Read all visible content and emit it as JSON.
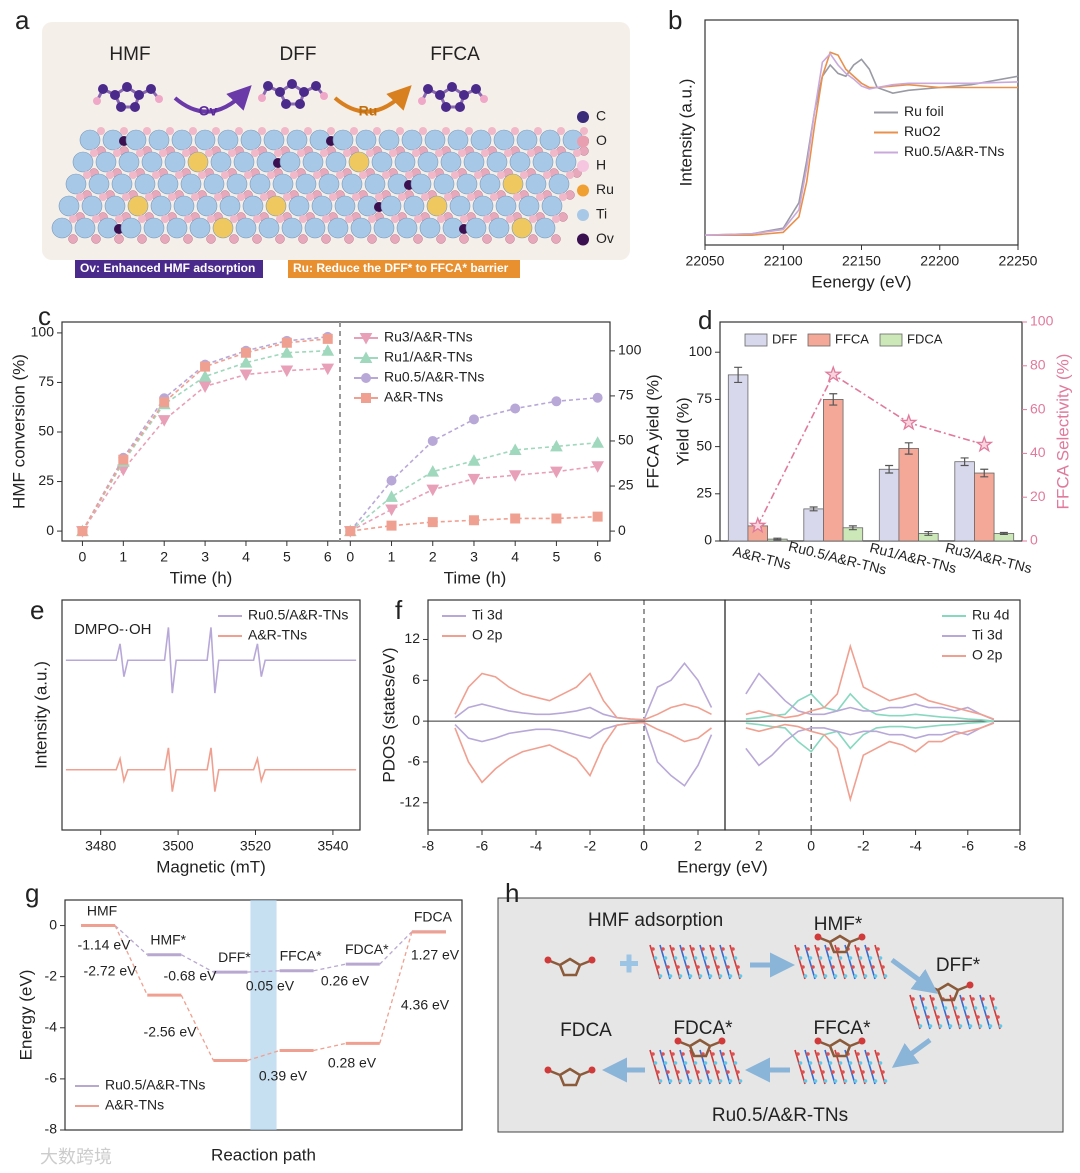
{
  "panel_labels": [
    "a",
    "b",
    "c",
    "d",
    "e",
    "f",
    "g",
    "h"
  ],
  "watermark": "大数跨境",
  "diagram_a": {
    "molecules": [
      "HMF",
      "DFF",
      "FFCA"
    ],
    "arrows": [
      "Ov",
      "Ru"
    ],
    "legend": [
      "C",
      "O",
      "H",
      "Ru",
      "Ti",
      "Ov"
    ],
    "captions": [
      "Ov: Enhanced HMF adsorption",
      "Ru: Reduce the DFF* to FFCA* barrier"
    ]
  },
  "diagram_h": {
    "steps": [
      "HMF adsorption",
      "HMF*",
      "DFF*",
      "FFCA*",
      "FDCA*",
      "FDCA"
    ],
    "catalyst": "Ru0.5/A&R-TNs"
  },
  "chart_data": [
    {
      "type": "line",
      "x_label": "Eenergy (eV)",
      "y_label": "Intensity (a.u.)",
      "x": [
        22050,
        22080,
        22100,
        22110,
        22115,
        22120,
        22125,
        22130,
        22135,
        22140,
        22145,
        22150,
        22155,
        22160,
        22170,
        22180,
        22200,
        22220,
        22250
      ],
      "xlim": [
        22050,
        22250
      ],
      "xticks": [
        22050,
        22100,
        22150,
        22200,
        22250
      ],
      "ylim": [
        0,
        1.6
      ],
      "legend": "center right",
      "series": [
        {
          "name": "Ru foil",
          "color": "#9a9aa4",
          "values": [
            0.07,
            0.08,
            0.12,
            0.3,
            0.6,
            0.95,
            1.2,
            1.28,
            1.22,
            1.2,
            1.28,
            1.32,
            1.25,
            1.12,
            1.08,
            1.1,
            1.12,
            1.14,
            1.2
          ]
        },
        {
          "name": "RuO2",
          "color": "#e8904c",
          "values": [
            0.07,
            0.07,
            0.09,
            0.2,
            0.45,
            0.85,
            1.2,
            1.37,
            1.35,
            1.25,
            1.2,
            1.15,
            1.12,
            1.12,
            1.13,
            1.14,
            1.12,
            1.12,
            1.12
          ]
        },
        {
          "name": "Ru0.5/A&R-TNs",
          "color": "#c9a9dc",
          "values": [
            0.07,
            0.08,
            0.11,
            0.25,
            0.55,
            0.95,
            1.3,
            1.36,
            1.28,
            1.22,
            1.18,
            1.13,
            1.11,
            1.12,
            1.14,
            1.15,
            1.15,
            1.15,
            1.16
          ]
        }
      ]
    },
    {
      "type": "line",
      "x_label": "Time (h)",
      "y_label": "HMF conversion (%)",
      "x": [
        0,
        1,
        2,
        3,
        4,
        5,
        6
      ],
      "xlim": [
        -0.5,
        6.3
      ],
      "xticks": [
        0,
        1,
        2,
        3,
        4,
        5,
        6
      ],
      "ylim": [
        -5,
        105.5
      ],
      "yticks": [
        0,
        25,
        50,
        75,
        100
      ],
      "series": [
        {
          "color": "#e8a0b8",
          "marker": "triangle-down",
          "linestyle": "dashed",
          "values": [
            0,
            31,
            56,
            73,
            79,
            81,
            82
          ]
        },
        {
          "color": "#9fd8bc",
          "marker": "triangle",
          "linestyle": "dashed",
          "values": [
            0,
            35,
            64,
            78,
            85,
            90,
            91
          ]
        },
        {
          "color": "#b8a8d8",
          "marker": "circle",
          "linestyle": "dashed",
          "values": [
            0,
            37,
            67,
            84,
            91,
            96,
            98
          ]
        },
        {
          "color": "#f0a090",
          "marker": "square",
          "linestyle": "dashed",
          "values": [
            0,
            36,
            65,
            83,
            90,
            95,
            97
          ]
        }
      ]
    },
    {
      "type": "line",
      "x_label": "Time (h)",
      "y_label": "FFCA yield (%)",
      "x": [
        0,
        1,
        2,
        3,
        4,
        5,
        6
      ],
      "xlim": [
        -0.25,
        6.3
      ],
      "xticks": [
        0,
        1,
        2,
        3,
        4,
        5,
        6
      ],
      "ylim": [
        -5.5,
        116
      ],
      "yticks": [
        0,
        25,
        50,
        75,
        100
      ],
      "legend": "upper left",
      "series": [
        {
          "name": "Ru3/A&R-TNs",
          "color": "#e8a0b8",
          "marker": "triangle-down",
          "linestyle": "dashed",
          "values": [
            0,
            12,
            23,
            29,
            31,
            33,
            36
          ]
        },
        {
          "name": "Ru1/A&R-TNs",
          "color": "#9fd8bc",
          "marker": "triangle",
          "linestyle": "dashed",
          "values": [
            0,
            19,
            33,
            39,
            45,
            47,
            49
          ]
        },
        {
          "name": "Ru0.5/A&R-TNs",
          "color": "#b8a8d8",
          "marker": "circle",
          "linestyle": "dashed",
          "values": [
            0,
            28,
            50,
            62,
            68,
            72,
            74
          ]
        },
        {
          "name": "A&R-TNs",
          "color": "#f0a090",
          "marker": "square",
          "linestyle": "dashed",
          "values": [
            0,
            3,
            5,
            6,
            7,
            7,
            8
          ]
        }
      ]
    },
    {
      "type": "bar",
      "y_label": "Yield (%)",
      "y2_label": "FFCA Selectivity (%)",
      "categories": [
        "A&R-TNs",
        "Ru0.5/A&R-TNs",
        "Ru1/A&R-TNs",
        "Ru3/A&R-TNs"
      ],
      "ylim": [
        0,
        116
      ],
      "yticks": [
        0,
        25,
        50,
        75,
        100
      ],
      "y2lim": [
        0,
        100
      ],
      "y2ticks": [
        0,
        20,
        40,
        60,
        80,
        100
      ],
      "legend": "upper center",
      "series": [
        {
          "name": "DFF",
          "color": "#d8d8ec",
          "values": [
            88,
            17,
            38,
            42
          ],
          "errors": [
            4,
            1,
            2,
            2
          ]
        },
        {
          "name": "FFCA",
          "color": "#f4a898",
          "values": [
            8,
            75,
            49,
            36
          ],
          "errors": [
            1,
            3,
            3,
            2
          ]
        },
        {
          "name": "FDCA",
          "color": "#cce8b8",
          "values": [
            1,
            7,
            4,
            4
          ],
          "errors": [
            0.5,
            1,
            1,
            0.5
          ]
        },
        {
          "axis": "y2",
          "color": "#e07a9c",
          "marker": "star",
          "linestyle": "dashdot",
          "values": [
            7,
            76,
            54,
            44
          ]
        }
      ]
    },
    {
      "type": "line",
      "x_label": "Magnetic (mT)",
      "y_label": "Intensity (a.u.)",
      "annotation": "DMPO-·OH",
      "x": [
        3471,
        3484,
        3485,
        3485.5,
        3486,
        3487,
        3496.5,
        3497.5,
        3498,
        3498.5,
        3499.5,
        3507.5,
        3508.5,
        3509,
        3509.5,
        3510.5,
        3519.5,
        3520.5,
        3521,
        3521.5,
        3522.5,
        3546
      ],
      "xlim": [
        3470,
        3547
      ],
      "xticks": [
        3480,
        3500,
        3520,
        3540
      ],
      "ylim": [
        -0.55,
        1.55
      ],
      "legend": "upper right",
      "series": [
        {
          "name": "Ru0.5/A&R-TNs",
          "color": "#b8a8d8",
          "values": [
            1,
            1,
            1.15,
            1,
            0.85,
            1,
            1,
            1.3,
            1,
            0.7,
            1,
            1,
            1.3,
            1,
            0.7,
            1,
            1,
            1.15,
            1,
            0.85,
            1,
            1
          ]
        },
        {
          "name": "A&R-TNs",
          "color": "#f0a090",
          "values": [
            0,
            0,
            0.1,
            0,
            -0.1,
            0,
            0,
            0.2,
            0,
            -0.2,
            0,
            0,
            0.2,
            0,
            -0.2,
            0,
            0,
            0.1,
            0,
            -0.1,
            0,
            0
          ]
        }
      ]
    },
    {
      "type": "line",
      "y_label": "PDOS (states/eV)",
      "x": [
        -7,
        -6.5,
        -6,
        -5.5,
        -5,
        -4.5,
        -4,
        -3.5,
        -3,
        -2.5,
        -2,
        -1.5,
        -1,
        -0.5,
        0,
        0.5,
        1,
        1.5,
        2,
        2.5
      ],
      "xlim": [
        -8,
        3
      ],
      "xticks": [
        -8,
        -6,
        -4,
        -2,
        0,
        2
      ],
      "ylim": [
        -16,
        17.8
      ],
      "yticks": [
        -12,
        -6,
        0,
        6,
        12
      ],
      "legend": "upper left",
      "series": [
        {
          "name": "Ti 3d",
          "color": "#b8a8d8",
          "values": [
            0.5,
            2,
            2.5,
            2,
            1.5,
            1.2,
            1,
            1,
            1.2,
            1.5,
            2,
            1,
            0.5,
            0.3,
            0.2,
            5,
            6,
            8.5,
            6,
            2
          ]
        },
        {
          "name": "O 2p",
          "color": "#f0a090",
          "values": [
            1,
            5,
            7,
            6.5,
            5,
            4,
            3.5,
            3,
            4,
            5,
            7,
            3,
            0.5,
            0.3,
            0.2,
            1,
            2,
            2.5,
            2,
            1
          ]
        },
        {
          "color": "#b8a8d8",
          "values": [
            -0.5,
            -2.5,
            -3,
            -2.5,
            -1.8,
            -1.5,
            -1.2,
            -1.2,
            -1.5,
            -2,
            -2.5,
            -1.2,
            -0.6,
            -0.3,
            -0.2,
            -6,
            -8,
            -9.5,
            -6.5,
            -2
          ]
        },
        {
          "color": "#f0a090",
          "values": [
            -1,
            -6,
            -9,
            -7,
            -5.5,
            -4.5,
            -4,
            -3.5,
            -4.5,
            -5.5,
            -8,
            -3.5,
            -0.6,
            -0.3,
            -0.2,
            -1.2,
            -2,
            -3,
            -2.5,
            -1
          ]
        }
      ]
    },
    {
      "type": "line",
      "x_label": "Energy (eV)",
      "x": [
        2.5,
        2,
        1.5,
        1,
        0.5,
        0,
        -0.5,
        -1,
        -1.5,
        -2,
        -2.5,
        -3,
        -3.5,
        -4,
        -4.5,
        -5,
        -5.5,
        -6,
        -6.5,
        -7
      ],
      "xlim": [
        3.3,
        -8
      ],
      "xticks": [
        2,
        0,
        -2,
        -4,
        -6,
        -8
      ],
      "ylim": [
        -16,
        17.8
      ],
      "legend": "upper right",
      "series": [
        {
          "name": "Ru 4d",
          "color": "#88d8c0",
          "values": [
            0.3,
            0.5,
            0.8,
            1,
            3,
            4,
            2,
            1.5,
            4,
            2,
            1,
            0.8,
            0.8,
            1,
            0.8,
            0.6,
            0.5,
            0.3,
            0.2,
            0
          ]
        },
        {
          "name": "Ti 3d",
          "color": "#b8a8d8",
          "values": [
            4,
            7,
            5,
            3,
            1.5,
            1,
            1,
            1.5,
            2,
            1.5,
            1.5,
            2,
            2,
            2.5,
            2,
            2,
            1.5,
            2,
            1,
            0.2
          ]
        },
        {
          "name": "O 2p",
          "color": "#f0a090",
          "values": [
            1,
            1.5,
            1,
            0.5,
            0.8,
            1.5,
            2,
            4,
            11,
            5,
            4,
            3,
            3.5,
            4,
            3,
            2.5,
            2,
            1.5,
            1,
            0.3
          ]
        },
        {
          "color": "#88d8c0",
          "values": [
            -0.3,
            -0.5,
            -0.8,
            -1,
            -3,
            -4.5,
            -2,
            -1.5,
            -4,
            -2,
            -1,
            -0.8,
            -0.8,
            -1,
            -0.8,
            -0.6,
            -0.5,
            -0.3,
            -0.2,
            0
          ]
        },
        {
          "color": "#b8a8d8",
          "values": [
            -4,
            -6.5,
            -5,
            -3,
            -1.5,
            -1,
            -1,
            -1.5,
            -2,
            -1.5,
            -1.5,
            -2,
            -2,
            -2.5,
            -2,
            -2,
            -1.5,
            -2,
            -1,
            -0.2
          ]
        },
        {
          "color": "#f0a090",
          "values": [
            -1,
            -1.5,
            -1,
            -0.5,
            -0.8,
            -1.5,
            -2,
            -4,
            -11.5,
            -5,
            -4,
            -3,
            -3.5,
            -4.5,
            -3,
            -3,
            -2,
            -1.5,
            -1,
            -0.3
          ]
        }
      ]
    },
    {
      "type": "step",
      "x_label": "Reaction path",
      "y_label": "Energy (eV)",
      "categories": [
        "HMF",
        "HMF*",
        "DFF*",
        "FFCA*",
        "FDCA*",
        "FDCA"
      ],
      "ylim": [
        -8,
        1
      ],
      "yticks": [
        0,
        -2,
        -4,
        -6,
        -8
      ],
      "legend": "lower left",
      "annotations": [
        "-1.14 eV",
        "-0.68 eV",
        "0.05 eV",
        "0.26 eV",
        "1.27 eV",
        "-2.72 eV",
        "-2.56 eV",
        "0.39 eV",
        "0.28 eV",
        "4.36 eV"
      ],
      "series": [
        {
          "name": "Ru0.5/A&R-TNs",
          "color": "#b8a8d0",
          "values": [
            0,
            -1.14,
            -1.82,
            -1.77,
            -1.51,
            -0.24
          ]
        },
        {
          "name": "A&R-TNs",
          "color": "#f0a090",
          "values": [
            0,
            -2.72,
            -5.28,
            -4.89,
            -4.61,
            -0.25
          ]
        }
      ]
    }
  ]
}
